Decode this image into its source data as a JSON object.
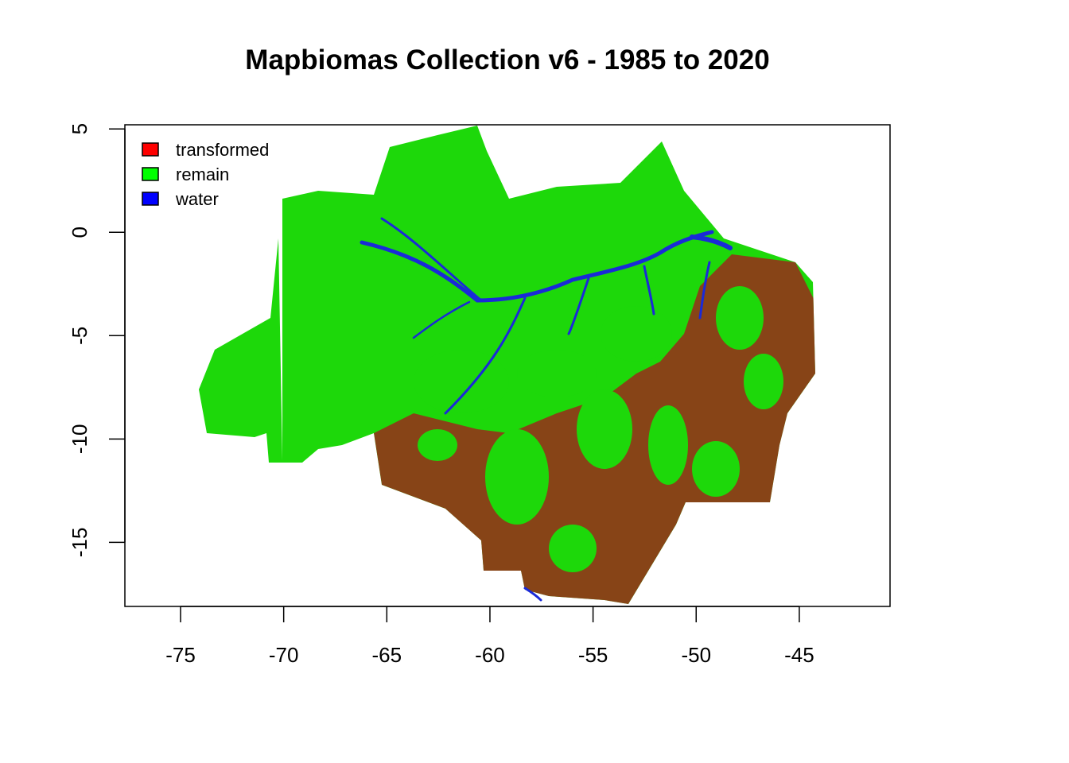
{
  "title": "Mapbiomas Collection v6 - 1985 to 2020",
  "legend": [
    {
      "label": "transformed",
      "color": "#ff0000"
    },
    {
      "label": "remain",
      "color": "#00ff00"
    },
    {
      "label": "water",
      "color": "#0000ff"
    }
  ],
  "render_colors": {
    "transformed": "#9a2a1a",
    "remain": "#1dd80a",
    "water": "#1a2ad8"
  },
  "axes": {
    "x_ticks": [
      "-75",
      "-70",
      "-65",
      "-60",
      "-55",
      "-50",
      "-45"
    ],
    "y_ticks": [
      "5",
      "0",
      "-5",
      "-10",
      "-15"
    ],
    "xlim": [
      -77.7,
      -40.6
    ],
    "ylim": [
      -18.1,
      5.2
    ]
  },
  "chart_data": {
    "type": "heatmap",
    "title": "Mapbiomas Collection v6 - 1985 to 2020",
    "xlabel": "",
    "ylabel": "",
    "x_ticks": [
      -75,
      -70,
      -65,
      -60,
      -55,
      -50,
      -45
    ],
    "y_ticks": [
      5,
      0,
      -5,
      -10,
      -15
    ],
    "xlim": [
      -77.7,
      -40.6
    ],
    "ylim": [
      -18.1,
      5.2
    ],
    "categories": [
      "transformed",
      "remain",
      "water"
    ],
    "legend_position": "top-left"
  }
}
